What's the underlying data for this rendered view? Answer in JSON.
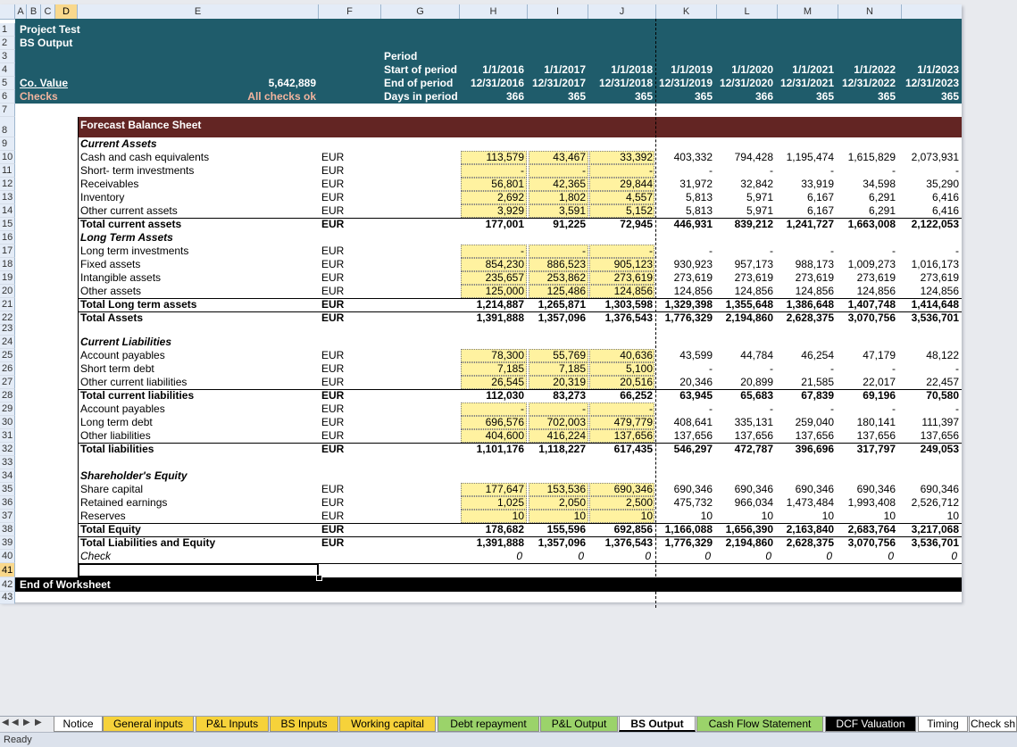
{
  "columns": [
    "A",
    "B",
    "C",
    "D",
    "E",
    "F",
    "G",
    "H",
    "I",
    "J",
    "K",
    "L",
    "M",
    "N"
  ],
  "rows": [
    "1",
    "2",
    "3",
    "4",
    "5",
    "6",
    "7",
    "8",
    "9",
    "10",
    "11",
    "12",
    "13",
    "14",
    "15",
    "16",
    "17",
    "18",
    "19",
    "20",
    "21",
    "22",
    "23",
    "24",
    "25",
    "26",
    "27",
    "28",
    "29",
    "30",
    "31",
    "32",
    "33",
    "34",
    "35",
    "36",
    "37",
    "38",
    "39",
    "40",
    "41",
    "42",
    "43"
  ],
  "header": {
    "title": "Project Test",
    "subtitle": "BS Output",
    "co_value_label": "Co. Value",
    "co_value": "5,642,889",
    "checks_label": "Checks",
    "checks_value": "All checks ok",
    "period_labels": [
      "Period",
      "Start of period",
      "End of period",
      "Days in period"
    ],
    "start": [
      "1/1/2016",
      "1/1/2017",
      "1/1/2018",
      "1/1/2019",
      "1/1/2020",
      "1/1/2021",
      "1/1/2022",
      "1/1/2023"
    ],
    "end": [
      "12/31/2016",
      "12/31/2017",
      "12/31/2018",
      "12/31/2019",
      "12/31/2020",
      "12/31/2021",
      "12/31/2022",
      "12/31/2023"
    ],
    "days": [
      "366",
      "365",
      "365",
      "365",
      "366",
      "365",
      "365",
      "365"
    ]
  },
  "section_title": "Forecast Balance Sheet",
  "lines": [
    {
      "label": "Current Assets",
      "style": "hdr",
      "unit": "",
      "vals": []
    },
    {
      "label": "Cash and cash equivalents",
      "style": "",
      "unit": "EUR",
      "vals": [
        "113,579",
        "43,467",
        "33,392",
        "403,332",
        "794,428",
        "1,195,474",
        "1,615,829",
        "2,073,931"
      ]
    },
    {
      "label": "Short- term investments",
      "style": "",
      "unit": "EUR",
      "vals": [
        "-",
        "-",
        "-",
        "-",
        "-",
        "-",
        "-",
        "-"
      ]
    },
    {
      "label": "Receivables",
      "style": "",
      "unit": "EUR",
      "vals": [
        "56,801",
        "42,365",
        "29,844",
        "31,972",
        "32,842",
        "33,919",
        "34,598",
        "35,290"
      ]
    },
    {
      "label": "Inventory",
      "style": "",
      "unit": "EUR",
      "vals": [
        "2,692",
        "1,802",
        "4,557",
        "5,813",
        "5,971",
        "6,167",
        "6,291",
        "6,416"
      ]
    },
    {
      "label": "Other current assets",
      "style": "",
      "unit": "EUR",
      "vals": [
        "3,929",
        "3,591",
        "5,152",
        "5,813",
        "5,971",
        "6,167",
        "6,291",
        "6,416"
      ]
    },
    {
      "label": "Total current assets",
      "style": "tot",
      "unit": "EUR",
      "vals": [
        "177,001",
        "91,225",
        "72,945",
        "446,931",
        "839,212",
        "1,241,727",
        "1,663,008",
        "2,122,053"
      ]
    },
    {
      "label": "Long Term Assets",
      "style": "hdr",
      "unit": "",
      "vals": []
    },
    {
      "label": "Long term investments",
      "style": "",
      "unit": "EUR",
      "vals": [
        "-",
        "-",
        "-",
        "-",
        "-",
        "-",
        "-",
        "-"
      ]
    },
    {
      "label": "Fixed assets",
      "style": "",
      "unit": "EUR",
      "vals": [
        "854,230",
        "886,523",
        "905,123",
        "930,923",
        "957,173",
        "988,173",
        "1,009,273",
        "1,016,173"
      ]
    },
    {
      "label": "Intangible assets",
      "style": "",
      "unit": "EUR",
      "vals": [
        "235,657",
        "253,862",
        "273,619",
        "273,619",
        "273,619",
        "273,619",
        "273,619",
        "273,619"
      ]
    },
    {
      "label": "Other assets",
      "style": "",
      "unit": "EUR",
      "vals": [
        "125,000",
        "125,486",
        "124,856",
        "124,856",
        "124,856",
        "124,856",
        "124,856",
        "124,856"
      ]
    },
    {
      "label": "Total Long term assets",
      "style": "tot",
      "unit": "EUR",
      "vals": [
        "1,214,887",
        "1,265,871",
        "1,303,598",
        "1,329,398",
        "1,355,648",
        "1,386,648",
        "1,407,748",
        "1,414,648"
      ]
    },
    {
      "label": "Total Assets",
      "style": "tot",
      "unit": "EUR",
      "vals": [
        "1,391,888",
        "1,357,096",
        "1,376,543",
        "1,776,329",
        "2,194,860",
        "2,628,375",
        "3,070,756",
        "3,536,701"
      ]
    },
    {
      "label": "",
      "style": "",
      "unit": "",
      "vals": []
    },
    {
      "label": "Current Liabilities",
      "style": "hdr",
      "unit": "",
      "vals": []
    },
    {
      "label": "Account payables",
      "style": "",
      "unit": "EUR",
      "vals": [
        "78,300",
        "55,769",
        "40,636",
        "43,599",
        "44,784",
        "46,254",
        "47,179",
        "48,122"
      ]
    },
    {
      "label": "Short term debt",
      "style": "",
      "unit": "EUR",
      "vals": [
        "7,185",
        "7,185",
        "5,100",
        "-",
        "-",
        "-",
        "-",
        "-"
      ]
    },
    {
      "label": "Other current liabilities",
      "style": "",
      "unit": "EUR",
      "vals": [
        "26,545",
        "20,319",
        "20,516",
        "20,346",
        "20,899",
        "21,585",
        "22,017",
        "22,457"
      ]
    },
    {
      "label": "Total current liabilities",
      "style": "tot",
      "unit": "EUR",
      "vals": [
        "112,030",
        "83,273",
        "66,252",
        "63,945",
        "65,683",
        "67,839",
        "69,196",
        "70,580"
      ]
    },
    {
      "label": "Account payables",
      "style": "",
      "unit": "EUR",
      "vals": [
        "-",
        "-",
        "-",
        "-",
        "-",
        "-",
        "-",
        "-"
      ]
    },
    {
      "label": "Long term debt",
      "style": "",
      "unit": "EUR",
      "vals": [
        "696,576",
        "702,003",
        "479,779",
        "408,641",
        "335,131",
        "259,040",
        "180,141",
        "111,397"
      ]
    },
    {
      "label": "Other liabilities",
      "style": "",
      "unit": "EUR",
      "vals": [
        "404,600",
        "416,224",
        "137,656",
        "137,656",
        "137,656",
        "137,656",
        "137,656",
        "137,656"
      ]
    },
    {
      "label": "Total liabilities",
      "style": "tot",
      "unit": "EUR",
      "vals": [
        "1,101,176",
        "1,118,227",
        "617,435",
        "546,297",
        "472,787",
        "396,696",
        "317,797",
        "249,053"
      ]
    },
    {
      "label": "",
      "style": "",
      "unit": "",
      "vals": []
    },
    {
      "label": "Shareholder's Equity",
      "style": "hdr2",
      "unit": "",
      "vals": []
    },
    {
      "label": "Share capital",
      "style": "",
      "unit": "EUR",
      "vals": [
        "177,647",
        "153,536",
        "690,346",
        "690,346",
        "690,346",
        "690,346",
        "690,346",
        "690,346"
      ]
    },
    {
      "label": "Retained earnings",
      "style": "",
      "unit": "EUR",
      "vals": [
        "1,025",
        "2,050",
        "2,500",
        "475,732",
        "966,034",
        "1,473,484",
        "1,993,408",
        "2,526,712"
      ]
    },
    {
      "label": "Reserves",
      "style": "",
      "unit": "EUR",
      "vals": [
        "10",
        "10",
        "10",
        "10",
        "10",
        "10",
        "10",
        "10"
      ]
    },
    {
      "label": "Total Equity",
      "style": "tot",
      "unit": "EUR",
      "vals": [
        "178,682",
        "155,596",
        "692,856",
        "1,166,088",
        "1,656,390",
        "2,163,840",
        "2,683,764",
        "3,217,068"
      ]
    },
    {
      "label": "Total Liabilities and Equity",
      "style": "tot",
      "unit": "EUR",
      "vals": [
        "1,391,888",
        "1,357,096",
        "1,376,543",
        "1,776,329",
        "2,194,860",
        "2,628,375",
        "3,070,756",
        "3,536,701"
      ]
    },
    {
      "label": "Check",
      "style": "chk",
      "unit": "",
      "vals": [
        "0",
        "0",
        "0",
        "0",
        "0",
        "0",
        "0",
        "0"
      ]
    }
  ],
  "end_of_worksheet": "End of Worksheet",
  "tabs": [
    {
      "label": "Notice",
      "color": "#ffffff",
      "active": false
    },
    {
      "label": "General inputs",
      "color": "#f6d23a",
      "active": false
    },
    {
      "label": "P&L Inputs",
      "color": "#f6d23a",
      "active": false
    },
    {
      "label": "BS Inputs",
      "color": "#f6d23a",
      "active": false
    },
    {
      "label": "Working capital",
      "color": "#f6d23a",
      "active": false
    },
    {
      "label": "Debt repayment",
      "color": "#9bd36a",
      "active": false
    },
    {
      "label": "P&L Output",
      "color": "#9bd36a",
      "active": false
    },
    {
      "label": "BS Output",
      "color": "#ffffff",
      "active": true
    },
    {
      "label": "Cash Flow Statement",
      "color": "#9bd36a",
      "active": false
    },
    {
      "label": "DCF Valuation",
      "color": "#000000",
      "active": false
    },
    {
      "label": "Timing",
      "color": "#ffffff",
      "active": false
    },
    {
      "label": "Check sh",
      "color": "#ffffff",
      "active": false
    }
  ],
  "status": "Ready",
  "nav_icons": [
    "first-sheet-icon",
    "prev-sheet-icon",
    "next-sheet-icon",
    "last-sheet-icon"
  ]
}
